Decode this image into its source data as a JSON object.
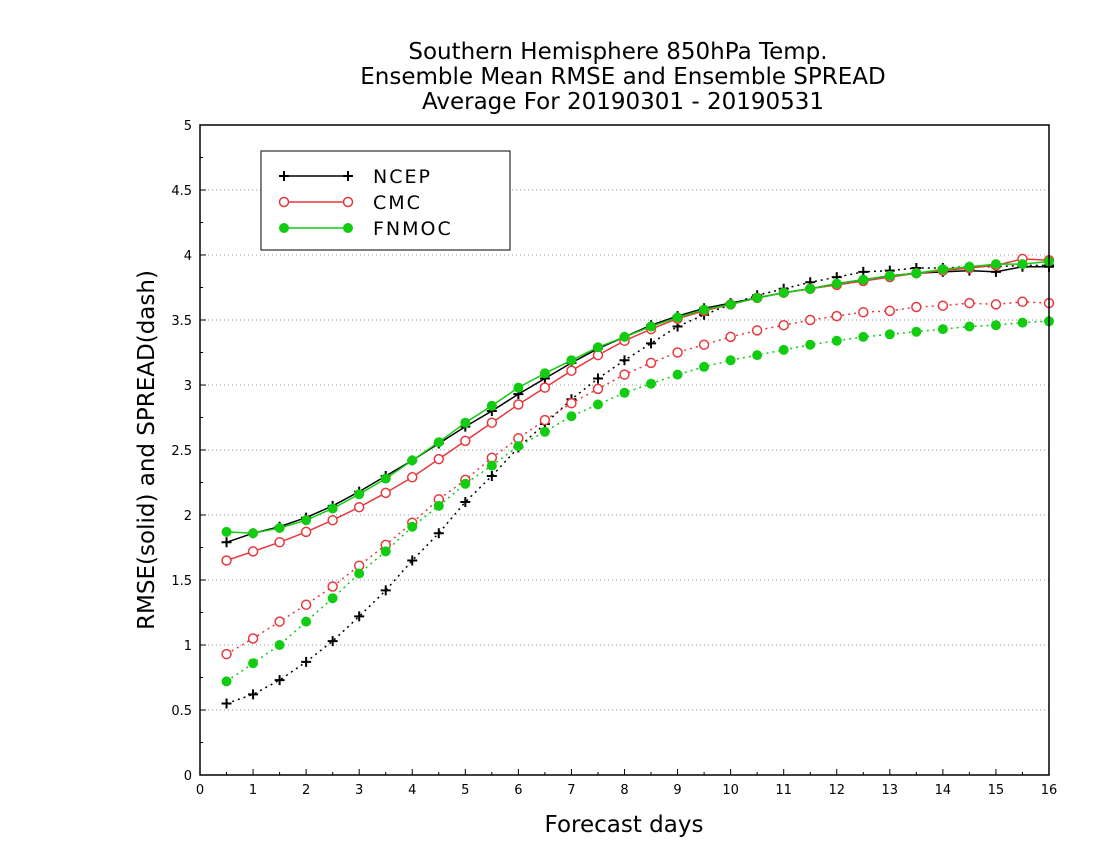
{
  "chart_data": {
    "type": "line",
    "title": [
      "Southern Hemisphere 850hPa Temp.",
      "Ensemble Mean RMSE and Ensemble SPREAD",
      "Average For 20190301 - 20190531"
    ],
    "xlabel": "Forecast days",
    "ylabel": "RMSE(solid) and SPREAD(dash)",
    "xlim": [
      0,
      16
    ],
    "ylim": [
      0,
      5
    ],
    "x_ticks": [
      "0",
      "1",
      "2",
      "3",
      "4",
      "5",
      "6",
      "7",
      "8",
      "9",
      "10",
      "11",
      "12",
      "13",
      "14",
      "15",
      "16"
    ],
    "y_ticks": [
      "0",
      "0.5",
      "1",
      "1.5",
      "2",
      "2.5",
      "3",
      "3.5",
      "4",
      "4.5",
      "5"
    ],
    "grid": "horizontal dotted",
    "legend_position": "top-left",
    "x": [
      0.5,
      1,
      1.5,
      2,
      2.5,
      3,
      3.5,
      4,
      4.5,
      5,
      5.5,
      6,
      6.5,
      7,
      7.5,
      8,
      8.5,
      9,
      9.5,
      10,
      10.5,
      11,
      11.5,
      12,
      12.5,
      13,
      13.5,
      14,
      14.5,
      15,
      15.5,
      16
    ],
    "series": [
      {
        "name": "NCEP",
        "color": "#000000",
        "marker": "plus",
        "rmse": [
          1.79,
          1.86,
          1.91,
          1.98,
          2.07,
          2.18,
          2.3,
          2.42,
          2.55,
          2.68,
          2.8,
          2.93,
          3.05,
          3.17,
          3.28,
          3.37,
          3.46,
          3.53,
          3.59,
          3.63,
          3.67,
          3.71,
          3.74,
          3.78,
          3.81,
          3.84,
          3.86,
          3.87,
          3.88,
          3.87,
          3.91,
          3.91
        ],
        "spread": [
          0.55,
          0.62,
          0.73,
          0.87,
          1.03,
          1.22,
          1.42,
          1.65,
          1.86,
          2.1,
          2.3,
          2.52,
          2.7,
          2.89,
          3.05,
          3.19,
          3.32,
          3.45,
          3.54,
          3.62,
          3.69,
          3.74,
          3.79,
          3.83,
          3.87,
          3.88,
          3.9,
          3.9,
          3.91,
          3.91,
          3.92,
          3.92
        ]
      },
      {
        "name": "CMC",
        "color": "#e8383d",
        "marker": "open-circle",
        "rmse": [
          1.65,
          1.72,
          1.79,
          1.87,
          1.96,
          2.06,
          2.17,
          2.29,
          2.43,
          2.57,
          2.71,
          2.85,
          2.98,
          3.11,
          3.23,
          3.34,
          3.43,
          3.51,
          3.57,
          3.62,
          3.67,
          3.71,
          3.74,
          3.77,
          3.8,
          3.83,
          3.86,
          3.88,
          3.9,
          3.92,
          3.97,
          3.96
        ],
        "spread": [
          0.93,
          1.05,
          1.18,
          1.31,
          1.45,
          1.61,
          1.77,
          1.94,
          2.12,
          2.27,
          2.44,
          2.59,
          2.73,
          2.86,
          2.97,
          3.08,
          3.17,
          3.25,
          3.31,
          3.37,
          3.42,
          3.46,
          3.5,
          3.53,
          3.56,
          3.57,
          3.6,
          3.61,
          3.63,
          3.62,
          3.64,
          3.63
        ]
      },
      {
        "name": "FNMOC",
        "color": "#11cc11",
        "marker": "filled-circle",
        "rmse": [
          1.87,
          1.86,
          1.9,
          1.96,
          2.05,
          2.16,
          2.28,
          2.42,
          2.56,
          2.71,
          2.84,
          2.98,
          3.09,
          3.19,
          3.29,
          3.37,
          3.45,
          3.52,
          3.58,
          3.62,
          3.67,
          3.71,
          3.74,
          3.78,
          3.81,
          3.84,
          3.86,
          3.89,
          3.91,
          3.93,
          3.93,
          3.95
        ],
        "spread": [
          0.72,
          0.86,
          1.0,
          1.18,
          1.36,
          1.55,
          1.72,
          1.91,
          2.07,
          2.24,
          2.38,
          2.53,
          2.64,
          2.76,
          2.85,
          2.94,
          3.01,
          3.08,
          3.14,
          3.19,
          3.23,
          3.27,
          3.31,
          3.34,
          3.37,
          3.39,
          3.41,
          3.43,
          3.45,
          3.46,
          3.48,
          3.49
        ]
      }
    ]
  }
}
